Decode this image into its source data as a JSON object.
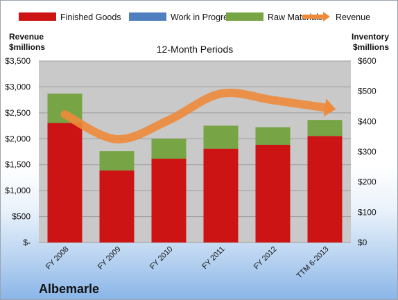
{
  "chart_data": {
    "type": "bar",
    "subtitle": "12-Month Periods",
    "company": "Albemarle",
    "categories": [
      "FY 2008",
      "FY 2009",
      "FY 2010",
      "FY 2011",
      "FY 2012",
      "TTM 6-2013"
    ],
    "series": [
      {
        "name": "Finished Goods",
        "axis": "right",
        "color": "#cc1414",
        "values": [
          395,
          238,
          277,
          310,
          323,
          352
        ]
      },
      {
        "name": "Work in Progress",
        "axis": "right",
        "color": "#4f7fbf",
        "values": [
          0,
          0,
          0,
          0,
          0,
          0
        ]
      },
      {
        "name": "Raw Materials",
        "axis": "right",
        "color": "#77a444",
        "values": [
          97,
          64,
          66,
          76,
          58,
          53
        ]
      },
      {
        "name": "Revenue",
        "axis": "left",
        "type": "line",
        "color": "#ee8a3a",
        "values": [
          2470,
          1990,
          2360,
          2870,
          2745,
          2600
        ]
      }
    ],
    "left_axis": {
      "label_line1": "Revenue",
      "label_line2": "$millions",
      "ylim": [
        0,
        3500
      ],
      "ticks": [
        0,
        500,
        1000,
        1500,
        2000,
        2500,
        3000,
        3500
      ],
      "tick_labels": [
        "$-",
        "$500",
        "$1,000",
        "$1,500",
        "$2,000",
        "$2,500",
        "$3,000",
        "$3,500"
      ]
    },
    "right_axis": {
      "label_line1": "Inventory",
      "label_line2": "$millions",
      "ylim": [
        0,
        600
      ],
      "ticks": [
        0,
        100,
        200,
        300,
        400,
        500,
        600
      ],
      "tick_labels": [
        "$0",
        "$100",
        "$200",
        "$300",
        "$400",
        "$500",
        "$600"
      ]
    },
    "legend_position": "top",
    "grid": true
  }
}
